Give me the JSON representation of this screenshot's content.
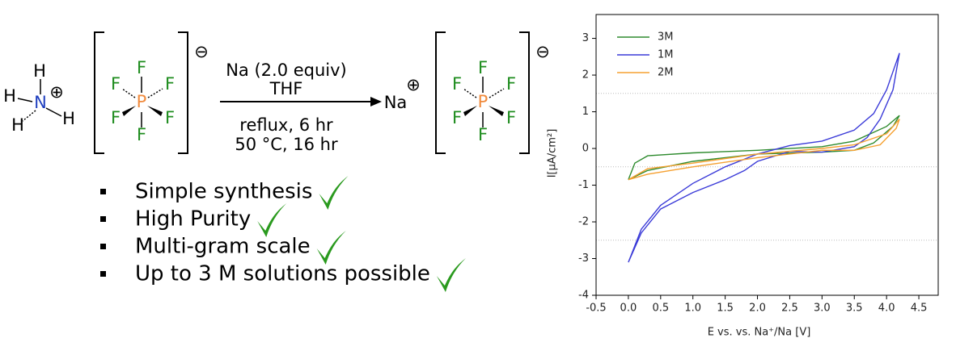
{
  "scheme": {
    "cation_atoms": [
      "H",
      "H",
      "N",
      "H",
      "H"
    ],
    "cation_charge": "⊕",
    "anion_1": {
      "center": "P",
      "ligands": [
        "F",
        "F",
        "F",
        "F",
        "F",
        "F"
      ],
      "charge": "⊖"
    },
    "conditions_above": [
      "Na (2.0 equiv)",
      "THF"
    ],
    "conditions_below": [
      "reflux, 6 hr",
      "50 °C, 16 hr"
    ],
    "product_cation": "Na",
    "product_charge": "⊕",
    "anion_2": {
      "center": "P",
      "ligands": [
        "F",
        "F",
        "F",
        "F",
        "F",
        "F"
      ],
      "charge": "⊖"
    }
  },
  "bullets": [
    "Simple synthesis",
    "High Purity",
    "Multi-gram scale",
    "Up to 3 M solutions possible"
  ],
  "chart_data": {
    "type": "line",
    "x_label": "E vs. vs. Na⁺/Na [V]",
    "y_label": "I[µA/cm²]",
    "xlim": [
      -0.5,
      4.8
    ],
    "ylim": [
      -4,
      3.65
    ],
    "xticks": [
      -0.5,
      {
        "value": 0,
        "label": "0.0"
      },
      0.5,
      {
        "value": 1,
        "label": "1.0"
      },
      1.5,
      {
        "value": 2,
        "label": "2.0"
      },
      2.5,
      {
        "value": 3,
        "label": "3.0"
      },
      3.5,
      {
        "value": 4,
        "label": "4.0"
      },
      4.5
    ],
    "yticks": [
      -4,
      -3,
      -2,
      -1,
      0,
      1,
      2,
      3
    ],
    "grid_y": [
      -2.5,
      -0.5,
      1.5
    ],
    "legend": "upper left",
    "series": [
      {
        "name": "3M",
        "color": "#2e8b2e",
        "x": [
          0,
          0.1,
          0.3,
          1,
          2,
          3,
          3.5,
          4.0,
          4.2,
          4.1,
          3.8,
          3.5,
          3,
          2,
          1,
          0.3,
          0
        ],
        "values": [
          -0.85,
          -0.4,
          -0.2,
          -0.12,
          -0.05,
          0.05,
          0.2,
          0.6,
          0.9,
          0.6,
          0.15,
          -0.05,
          -0.1,
          -0.15,
          -0.35,
          -0.6,
          -0.85
        ]
      },
      {
        "name": "1M",
        "color": "#3b3bd8",
        "x": [
          0,
          0.2,
          0.5,
          1.0,
          1.5,
          2.0,
          2.5,
          3.0,
          3.5,
          3.8,
          4.0,
          4.2,
          4.1,
          3.9,
          3.7,
          3.5,
          3.0,
          2.5,
          2.0,
          1.8,
          1.5,
          1.0,
          0.5,
          0.2,
          0
        ],
        "values": [
          -3.1,
          -2.2,
          -1.55,
          -0.95,
          -0.5,
          -0.15,
          0.08,
          0.2,
          0.5,
          0.95,
          1.6,
          2.6,
          1.6,
          0.8,
          0.3,
          0.05,
          -0.1,
          -0.08,
          -0.35,
          -0.6,
          -0.85,
          -1.2,
          -1.65,
          -2.3,
          -3.1
        ]
      },
      {
        "name": "2M",
        "color": "#f5a030",
        "x": [
          0,
          0.3,
          1,
          2,
          3,
          3.5,
          4.0,
          4.2,
          4.15,
          3.9,
          3.5,
          3,
          2,
          1,
          0.3,
          0
        ],
        "values": [
          -0.85,
          -0.55,
          -0.4,
          -0.15,
          0,
          0.1,
          0.4,
          0.8,
          0.55,
          0.1,
          -0.05,
          -0.05,
          -0.25,
          -0.5,
          -0.7,
          -0.85
        ]
      }
    ]
  }
}
